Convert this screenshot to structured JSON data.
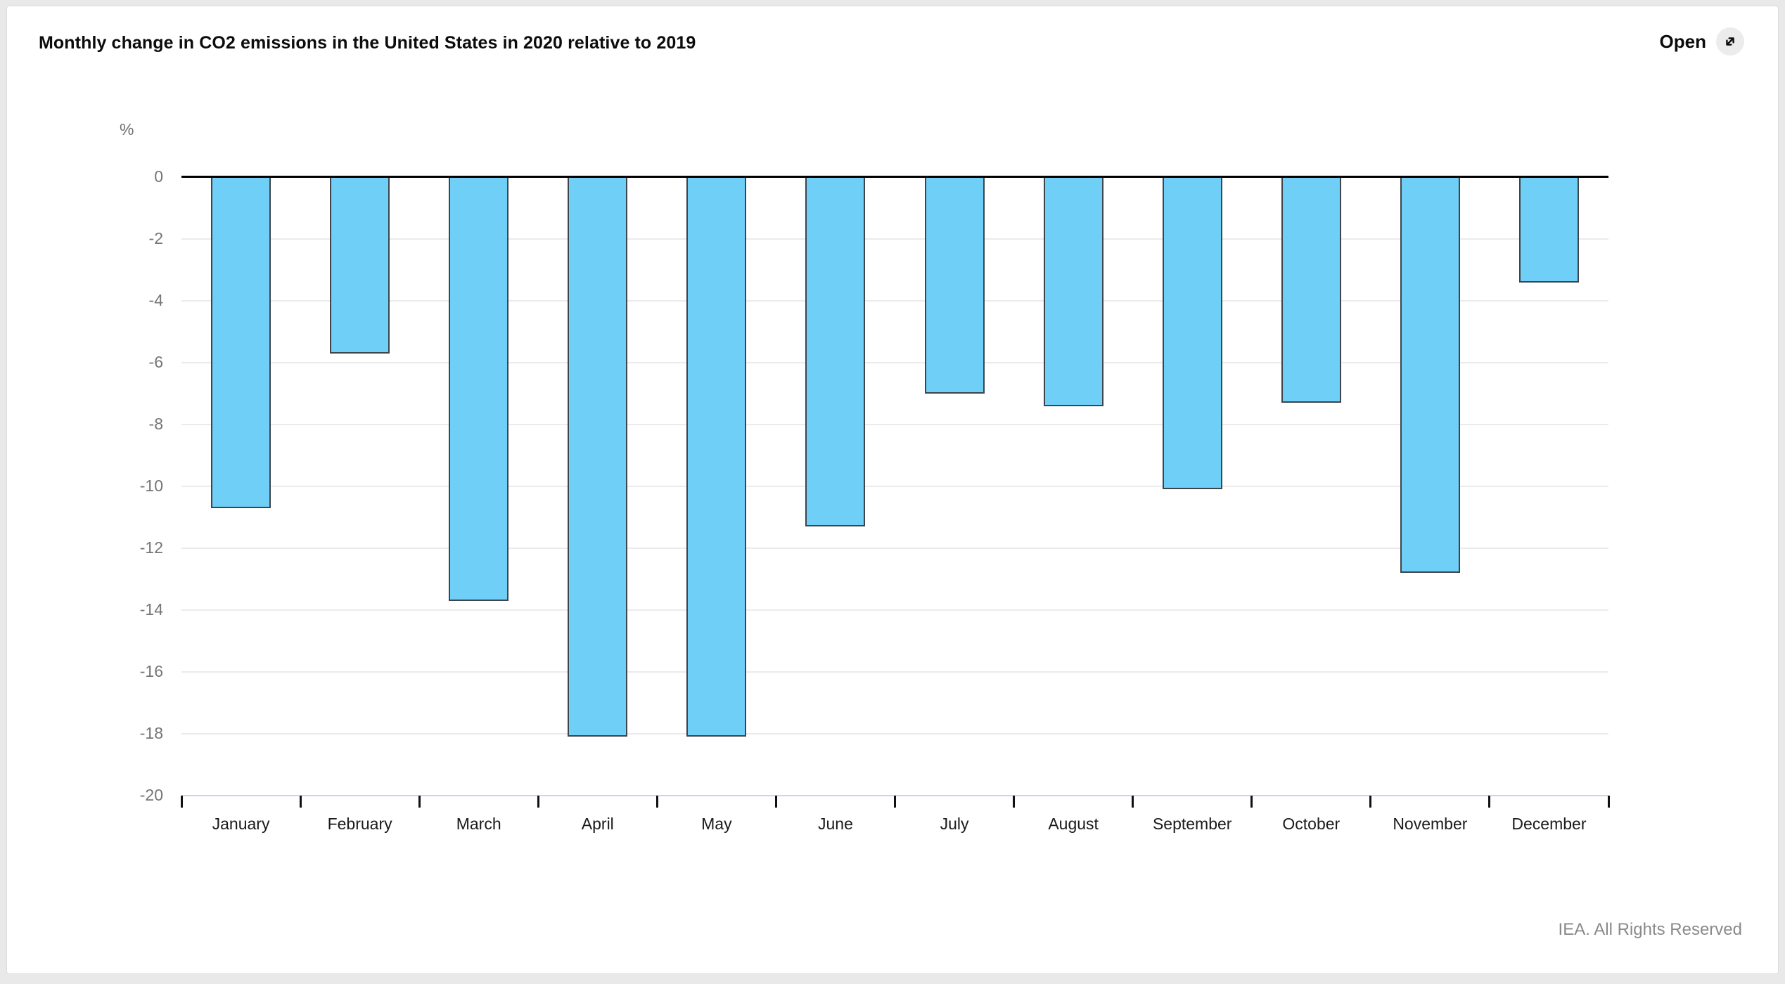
{
  "header": {
    "title": "Monthly change in CO2 emissions in the United States in 2020 relative to 2019",
    "open_label": "Open",
    "open_icon": "expand-diagonal-arrow-icon"
  },
  "footer": {
    "credit": "IEA. All Rights Reserved"
  },
  "chart_data": {
    "type": "bar",
    "title": "Monthly change in CO2 emissions in the United States in 2020 relative to 2019",
    "categories": [
      "January",
      "February",
      "March",
      "April",
      "May",
      "June",
      "July",
      "August",
      "September",
      "October",
      "November",
      "December"
    ],
    "values": [
      -10.7,
      -5.7,
      -13.7,
      -18.1,
      -18.1,
      -11.3,
      -7.0,
      -7.4,
      -10.1,
      -7.3,
      -12.8,
      -3.4
    ],
    "xlabel": "",
    "ylabel": "%",
    "ylim": [
      -20,
      0
    ],
    "yticks": [
      0,
      -2,
      -4,
      -6,
      -8,
      -10,
      -12,
      -14,
      -16,
      -18,
      -20
    ],
    "grid": true,
    "legend": "none",
    "bar_color": "#6fcff7",
    "bar_border_color": "#3d444b",
    "zero_line_color": "#000000",
    "axis_line_color": "#ccd6eb"
  }
}
